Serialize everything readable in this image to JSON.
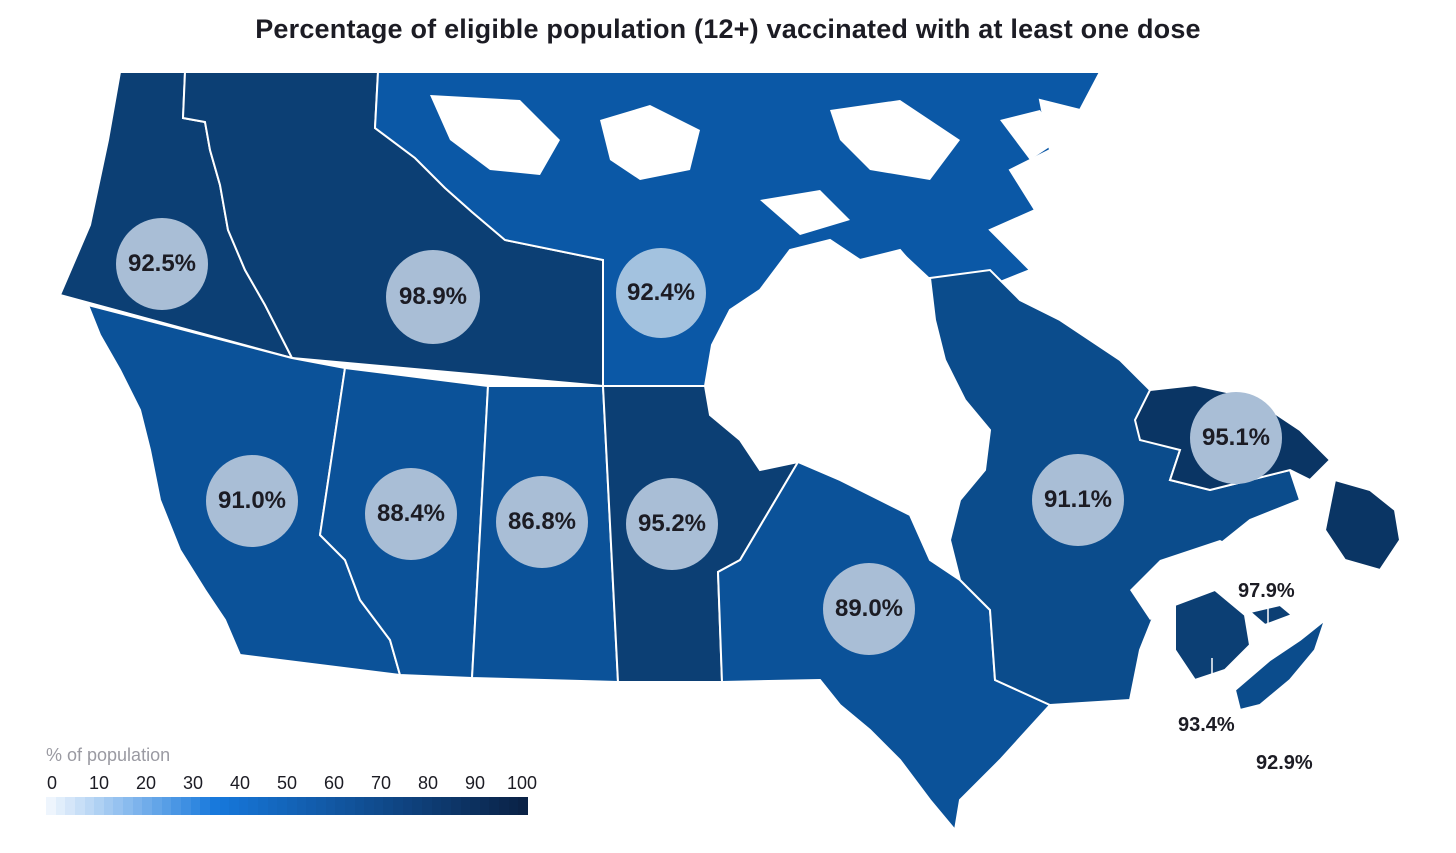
{
  "title": "Percentage of eligible population (12+) vaccinated with at least one dose",
  "colors": {
    "dark": "#0c3f74",
    "medium": "#0b5299",
    "bright": "#0b58a6",
    "darkest": "#0a3564",
    "bubble": "#a9bed6",
    "bubble_light": "#a3c2df",
    "border": "#ffffff"
  },
  "regions": [
    {
      "id": "yukon",
      "name": "Yukon",
      "value": "92.5%"
    },
    {
      "id": "northwest-territories",
      "name": "Northwest Territories",
      "value": "98.9%"
    },
    {
      "id": "nunavut",
      "name": "Nunavut",
      "value": "92.4%"
    },
    {
      "id": "british-columbia",
      "name": "British Columbia",
      "value": "91.0%"
    },
    {
      "id": "alberta",
      "name": "Alberta",
      "value": "88.4%"
    },
    {
      "id": "saskatchewan",
      "name": "Saskatchewan",
      "value": "86.8%"
    },
    {
      "id": "manitoba",
      "name": "Manitoba",
      "value": "95.2%"
    },
    {
      "id": "ontario",
      "name": "Ontario",
      "value": "89.0%"
    },
    {
      "id": "quebec",
      "name": "Quebec",
      "value": "91.1%"
    },
    {
      "id": "newfoundland-labrador",
      "name": "Newfoundland and Labrador",
      "value": "95.1%"
    },
    {
      "id": "prince-edward-island",
      "name": "Prince Edward Island",
      "value": "97.9%"
    },
    {
      "id": "new-brunswick",
      "name": "New Brunswick",
      "value": "93.4%"
    },
    {
      "id": "nova-scotia",
      "name": "Nova Scotia",
      "value": "92.9%"
    }
  ],
  "legend": {
    "title": "% of population",
    "ticks": [
      "0",
      "10",
      "20",
      "30",
      "40",
      "50",
      "60",
      "70",
      "80",
      "90",
      "100"
    ],
    "gradient_start": "#eef5fd",
    "gradient_end": "#0a2246"
  }
}
